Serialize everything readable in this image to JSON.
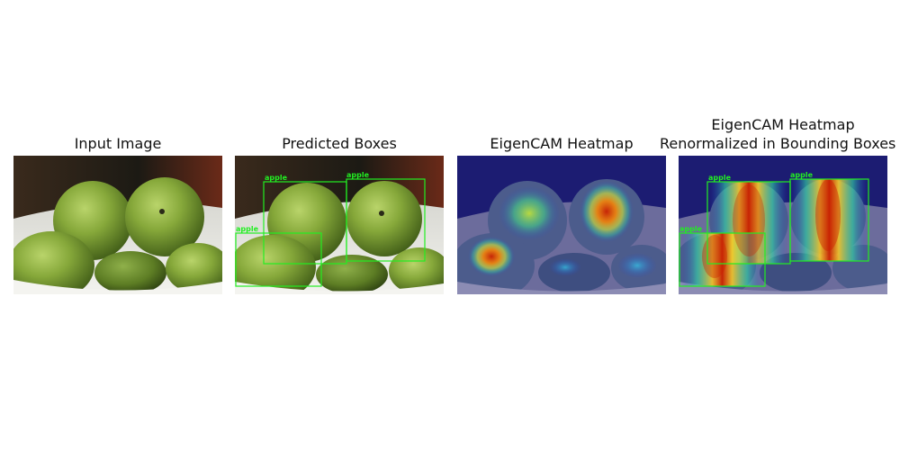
{
  "panels": [
    {
      "title": "Input Image"
    },
    {
      "title": "Predicted Boxes"
    },
    {
      "title": "EigenCAM Heatmap"
    },
    {
      "title_line1": "EigenCAM Heatmap",
      "title_line2": "Renormalized in Bounding Boxes"
    }
  ],
  "detections": [
    {
      "label": "apple"
    },
    {
      "label": "apple"
    },
    {
      "label": "apple"
    }
  ],
  "colors": {
    "box_green": "#22ee22",
    "apple_green": "#7fa53a",
    "bowl_white": "#e6e6e2",
    "heatmap_base": "#1a1a6e"
  }
}
